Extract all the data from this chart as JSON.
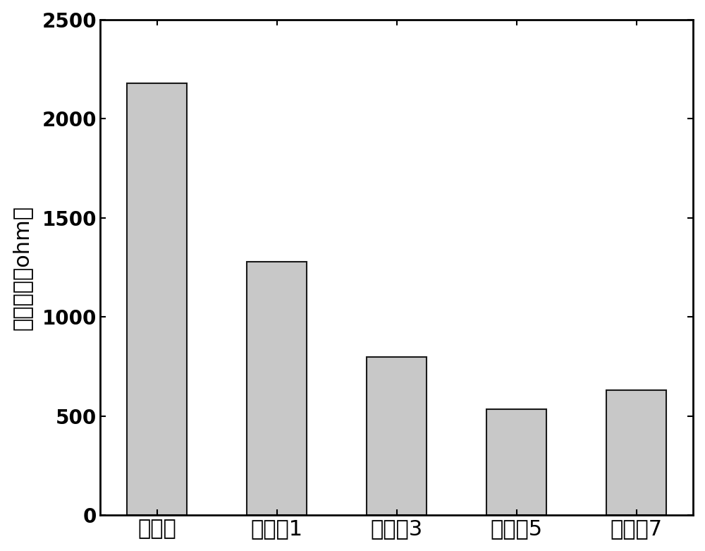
{
  "categories": [
    "对比例",
    "实施例1",
    "实施例3",
    "实施例5",
    "实施例7"
  ],
  "values": [
    2180,
    1280,
    800,
    535,
    630
  ],
  "bar_color": "#c8c8c8",
  "bar_edgecolor": "#1a1a1a",
  "bar_linewidth": 1.5,
  "ylabel_chinese": "界面际抗（ohm）",
  "ylim": [
    0,
    2500
  ],
  "yticks": [
    0,
    500,
    1000,
    1500,
    2000,
    2500
  ],
  "background_color": "#ffffff",
  "ylabel_fontsize": 22,
  "tick_fontsize": 20,
  "xtick_fontsize": 22,
  "bar_width": 0.5,
  "spine_linewidth": 2.0
}
